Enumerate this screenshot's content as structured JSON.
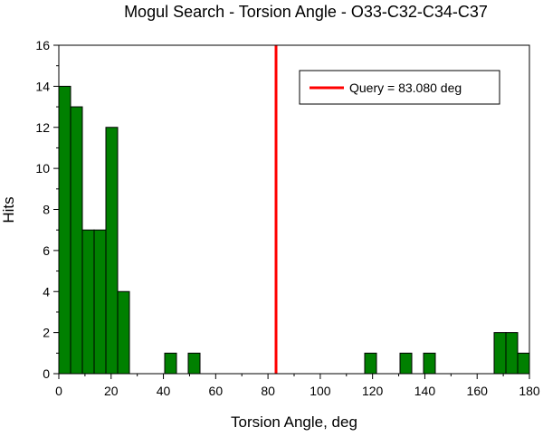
{
  "chart_data": {
    "type": "bar",
    "title": "Mogul Search - Torsion Angle - O33-C32-C34-C37",
    "xlabel": "Torsion Angle, deg",
    "ylabel": "Hits",
    "xlim": [
      0,
      180
    ],
    "ylim": [
      0,
      16
    ],
    "xticks": [
      0,
      20,
      40,
      60,
      80,
      100,
      120,
      140,
      160,
      180
    ],
    "yticks": [
      0,
      2,
      4,
      6,
      8,
      10,
      12,
      14,
      16
    ],
    "bin_width": 4.5,
    "bars": [
      {
        "x": 2.25,
        "value": 14
      },
      {
        "x": 6.75,
        "value": 13
      },
      {
        "x": 11.25,
        "value": 7
      },
      {
        "x": 15.75,
        "value": 7
      },
      {
        "x": 20.25,
        "value": 12
      },
      {
        "x": 24.75,
        "value": 4
      },
      {
        "x": 42.75,
        "value": 1
      },
      {
        "x": 51.75,
        "value": 1
      },
      {
        "x": 119.25,
        "value": 1
      },
      {
        "x": 132.75,
        "value": 1
      },
      {
        "x": 141.75,
        "value": 1
      },
      {
        "x": 168.75,
        "value": 2
      },
      {
        "x": 173.25,
        "value": 2
      },
      {
        "x": 177.75,
        "value": 1
      }
    ],
    "bar_color": "#008000",
    "query": {
      "label": "Query = 83.080 deg",
      "value": 83.08,
      "color": "#ff0000"
    },
    "legend_position": "top-right",
    "grid": false
  }
}
